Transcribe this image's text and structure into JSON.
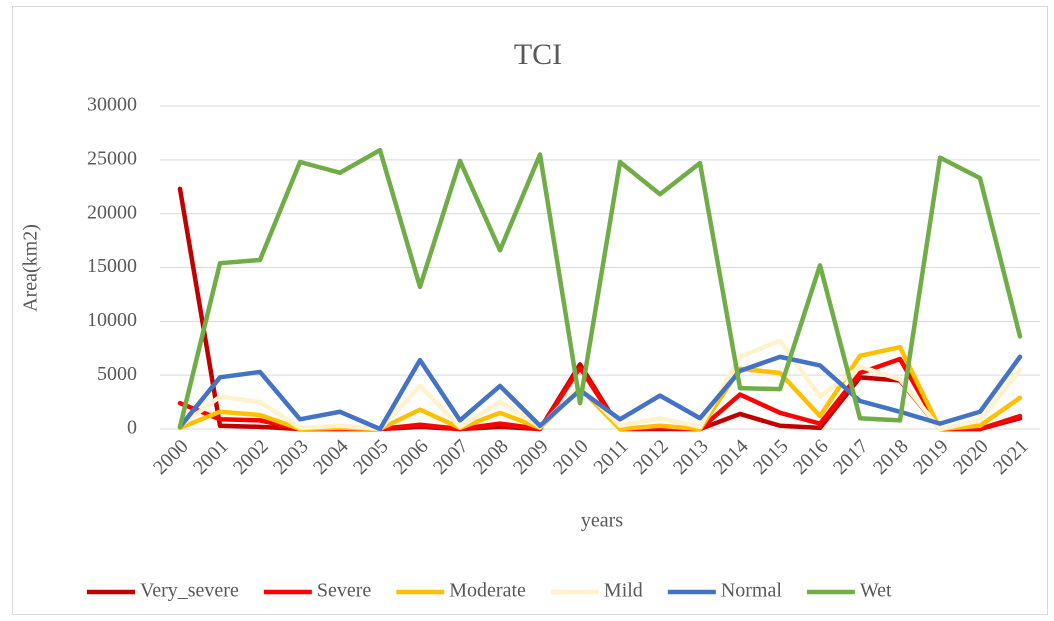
{
  "chart_data": {
    "type": "line",
    "title": "TCI",
    "x_label": "years",
    "y_label": "Area(km2)",
    "categories": [
      "2000",
      "2001",
      "2002",
      "2003",
      "2004",
      "2005",
      "2006",
      "2007",
      "2008",
      "2009",
      "2010",
      "2011",
      "2012",
      "2013",
      "2014",
      "2015",
      "2016",
      "2017",
      "2018",
      "2019",
      "2020",
      "2021"
    ],
    "ylim": [
      0,
      30000
    ],
    "yticks": [
      0,
      5000,
      10000,
      15000,
      20000,
      25000,
      30000
    ],
    "grid": true,
    "legend": "bottom",
    "series": [
      {
        "name": "Very_severe",
        "color": "#c00000",
        "values": [
          22300,
          300,
          200,
          0,
          0,
          0,
          200,
          0,
          200,
          0,
          6000,
          0,
          0,
          0,
          1400,
          300,
          100,
          4800,
          4500,
          0,
          0,
          1000
        ]
      },
      {
        "name": "Severe",
        "color": "#ff0000",
        "values": [
          2400,
          900,
          800,
          0,
          0,
          0,
          400,
          0,
          500,
          0,
          5700,
          0,
          100,
          0,
          3200,
          1500,
          500,
          5200,
          6500,
          0,
          0,
          1200
        ]
      },
      {
        "name": "Moderate",
        "color": "#ffc000",
        "values": [
          100,
          1600,
          1300,
          0,
          100,
          0,
          1800,
          100,
          1500,
          100,
          3800,
          0,
          300,
          0,
          5600,
          5200,
          1200,
          6800,
          7600,
          0,
          300,
          2900
        ]
      },
      {
        "name": "Mild",
        "color": "#fff2cc",
        "values": [
          300,
          3000,
          2500,
          100,
          300,
          0,
          4000,
          200,
          2500,
          200,
          4000,
          300,
          1000,
          200,
          6700,
          8200,
          3000,
          5800,
          4600,
          0,
          800,
          5500
        ]
      },
      {
        "name": "Normal",
        "color": "#4472c4",
        "values": [
          200,
          4800,
          5300,
          900,
          1600,
          0,
          6400,
          800,
          4000,
          300,
          3600,
          900,
          3100,
          1000,
          5400,
          6700,
          5900,
          2600,
          1600,
          500,
          1600,
          6700
        ]
      },
      {
        "name": "Wet",
        "color": "#70ad47",
        "values": [
          200,
          15400,
          15700,
          24800,
          23800,
          25900,
          13200,
          24900,
          16600,
          25500,
          2400,
          24800,
          21800,
          24700,
          3800,
          3700,
          15200,
          1000,
          800,
          25200,
          23300,
          8600
        ]
      }
    ]
  }
}
